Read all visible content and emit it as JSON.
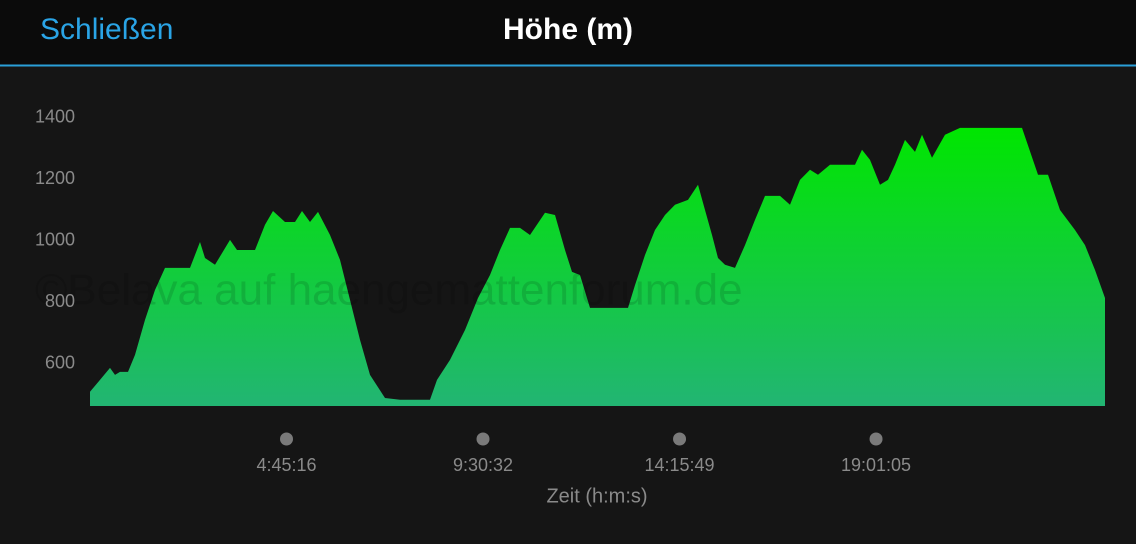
{
  "header": {
    "close": "Schließen"
  },
  "chart_data": {
    "type": "area",
    "title": "Höhe (m)",
    "x_label": "Zeit (h:m:s)",
    "watermark": "©Belava auf haengemattenforum.de",
    "gradient": [
      "#00e600",
      "#22b573"
    ],
    "x": [
      0,
      871,
      1742,
      2178,
      2613,
      3310,
      3920,
      4791,
      5662,
      6533,
      8710,
      9581,
      10017,
      10888,
      12194,
      12804,
      14372,
      15243,
      15939,
      16985,
      17856,
      18465,
      19162,
      19859,
      20904,
      21775,
      22646,
      23517,
      24388,
      25695,
      27001,
      29614,
      30224,
      31356,
      32663,
      33795,
      34840,
      35711,
      36582,
      37453,
      38324,
      39631,
      40502,
      41372,
      41982,
      42679,
      43550,
      44421,
      46860,
      47470,
      48341,
      49212,
      50083,
      50954,
      52086,
      52957,
      53567,
      54176,
      54699,
      55309,
      56180,
      57051,
      57922,
      58793,
      60099,
      60970,
      61841,
      62712,
      63409,
      64454,
      66632,
      67241,
      67938,
      68809,
      69506,
      70116,
      70987,
      71858,
      72467,
      73338,
      74471,
      75777,
      79261,
      81177,
      82571,
      83442,
      84487,
      85794,
      86665,
      87536,
      88407
    ],
    "values": [
      509,
      548,
      587,
      564,
      574,
      574,
      629,
      743,
      840,
      912,
      912,
      996,
      944,
      922,
      1003,
      970,
      970,
      1052,
      1097,
      1061,
      1061,
      1097,
      1061,
      1094,
      1019,
      938,
      808,
      678,
      564,
      489,
      483,
      483,
      548,
      613,
      710,
      814,
      889,
      970,
      1042,
      1042,
      1019,
      1091,
      1084,
      970,
      899,
      889,
      782,
      782,
      782,
      856,
      954,
      1035,
      1084,
      1117,
      1133,
      1182,
      1100,
      1019,
      944,
      922,
      912,
      986,
      1068,
      1146,
      1146,
      1117,
      1198,
      1231,
      1215,
      1247,
      1247,
      1296,
      1263,
      1182,
      1198,
      1247,
      1328,
      1289,
      1345,
      1270,
      1345,
      1367,
      1367,
      1367,
      1215,
      1215,
      1100,
      1035,
      986,
      905,
      814
    ],
    "xlim": [
      0,
      88407
    ],
    "ylim": [
      463,
      1500
    ],
    "xticks": [
      {
        "value": 17116,
        "label": "4:45:16"
      },
      {
        "value": 34232,
        "label": "9:30:32"
      },
      {
        "value": 51349,
        "label": "14:15:49"
      },
      {
        "value": 68465,
        "label": "19:01:05"
      }
    ],
    "yticks": [
      600,
      800,
      1000,
      1200,
      1400
    ]
  }
}
